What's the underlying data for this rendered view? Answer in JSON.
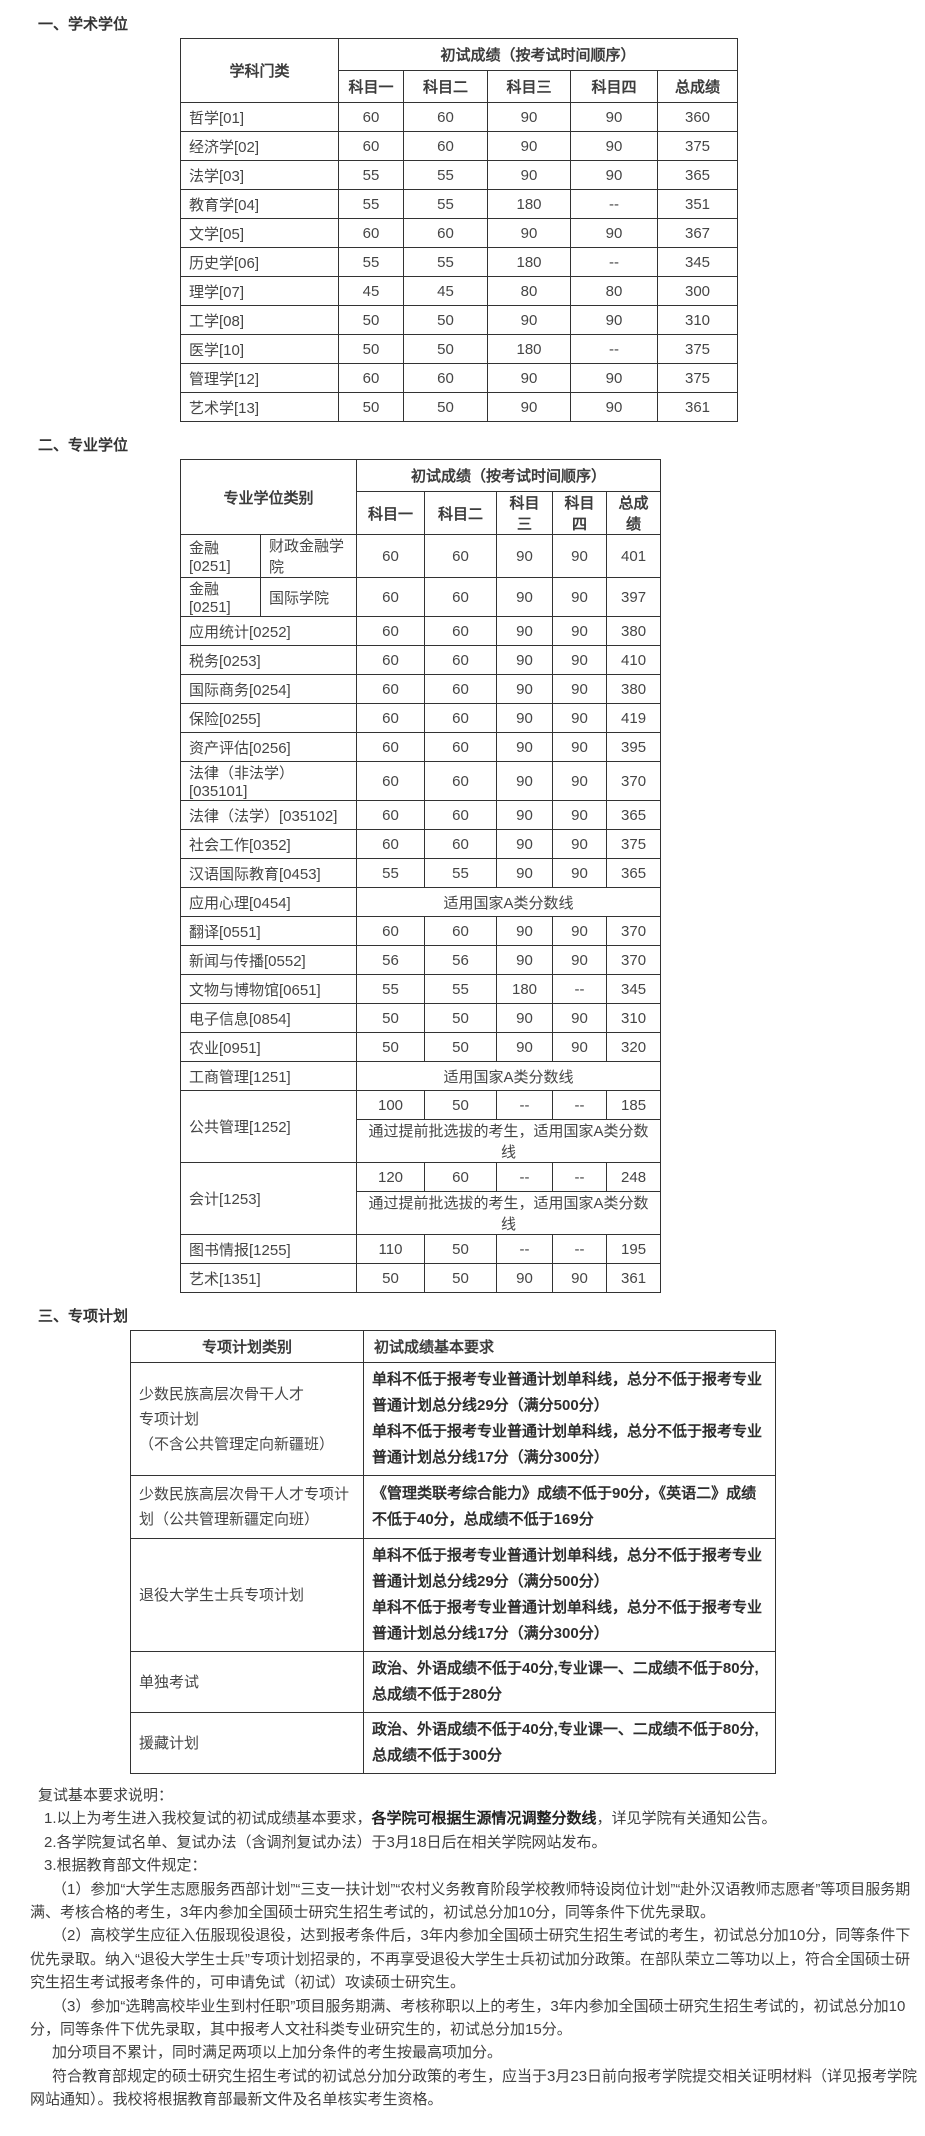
{
  "colors": {
    "border": "#333333",
    "text": "#404040",
    "heading": "#333333",
    "background": "#ffffff"
  },
  "academic": {
    "heading": "一、学术学位",
    "col_header": "学科门类",
    "score_group": "初试成绩（按考试时间顺序）",
    "subjects": [
      "科目一",
      "科目二",
      "科目三",
      "科目四",
      "总成绩"
    ],
    "rows": [
      {
        "name": "哲学[01]",
        "scores": [
          "60",
          "60",
          "90",
          "90",
          "360"
        ]
      },
      {
        "name": "经济学[02]",
        "scores": [
          "60",
          "60",
          "90",
          "90",
          "375"
        ]
      },
      {
        "name": "法学[03]",
        "scores": [
          "55",
          "55",
          "90",
          "90",
          "365"
        ]
      },
      {
        "name": "教育学[04]",
        "scores": [
          "55",
          "55",
          "180",
          "--",
          "351"
        ]
      },
      {
        "name": "文学[05]",
        "scores": [
          "60",
          "60",
          "90",
          "90",
          "367"
        ]
      },
      {
        "name": "历史学[06]",
        "scores": [
          "55",
          "55",
          "180",
          "--",
          "345"
        ]
      },
      {
        "name": "理学[07]",
        "scores": [
          "45",
          "45",
          "80",
          "80",
          "300"
        ]
      },
      {
        "name": "工学[08]",
        "scores": [
          "50",
          "50",
          "90",
          "90",
          "310"
        ]
      },
      {
        "name": "医学[10]",
        "scores": [
          "50",
          "50",
          "180",
          "--",
          "375"
        ]
      },
      {
        "name": "管理学[12]",
        "scores": [
          "60",
          "60",
          "90",
          "90",
          "375"
        ]
      },
      {
        "name": "艺术学[13]",
        "scores": [
          "50",
          "50",
          "90",
          "90",
          "361"
        ]
      }
    ]
  },
  "professional": {
    "heading": "二、专业学位",
    "col_header": "专业学位类别",
    "score_group": "初试成绩（按考试时间顺序）",
    "subjects": [
      "科目一",
      "科目二",
      "科目三",
      "科目四",
      "总成绩"
    ],
    "rows": [
      {
        "name": "金融[0251]",
        "college": "财政金融学院",
        "scores": [
          "60",
          "60",
          "90",
          "90",
          "401"
        ]
      },
      {
        "name": "金融[0251]",
        "college": "国际学院",
        "scores": [
          "60",
          "60",
          "90",
          "90",
          "397"
        ]
      },
      {
        "name": "应用统计[0252]",
        "scores": [
          "60",
          "60",
          "90",
          "90",
          "380"
        ]
      },
      {
        "name": "税务[0253]",
        "scores": [
          "60",
          "60",
          "90",
          "90",
          "410"
        ]
      },
      {
        "name": "国际商务[0254]",
        "scores": [
          "60",
          "60",
          "90",
          "90",
          "380"
        ]
      },
      {
        "name": "保险[0255]",
        "scores": [
          "60",
          "60",
          "90",
          "90",
          "419"
        ]
      },
      {
        "name": "资产评估[0256]",
        "scores": [
          "60",
          "60",
          "90",
          "90",
          "395"
        ]
      },
      {
        "name": "法律（非法学）[035101]",
        "scores": [
          "60",
          "60",
          "90",
          "90",
          "370"
        ]
      },
      {
        "name": "法律（法学）[035102]",
        "scores": [
          "60",
          "60",
          "90",
          "90",
          "365"
        ]
      },
      {
        "name": "社会工作[0352]",
        "scores": [
          "60",
          "60",
          "90",
          "90",
          "375"
        ]
      },
      {
        "name": "汉语国际教育[0453]",
        "scores": [
          "55",
          "55",
          "90",
          "90",
          "365"
        ]
      },
      {
        "name": "应用心理[0454]",
        "span_text": "适用国家A类分数线"
      },
      {
        "name": "翻译[0551]",
        "scores": [
          "60",
          "60",
          "90",
          "90",
          "370"
        ]
      },
      {
        "name": "新闻与传播[0552]",
        "scores": [
          "56",
          "56",
          "90",
          "90",
          "370"
        ]
      },
      {
        "name": "文物与博物馆[0651]",
        "scores": [
          "55",
          "55",
          "180",
          "--",
          "345"
        ]
      },
      {
        "name": "电子信息[0854]",
        "scores": [
          "50",
          "50",
          "90",
          "90",
          "310"
        ]
      },
      {
        "name": "农业[0951]",
        "scores": [
          "50",
          "50",
          "90",
          "90",
          "320"
        ]
      },
      {
        "name": "工商管理[1251]",
        "span_text": "适用国家A类分数线"
      },
      {
        "name": "公共管理[1252]",
        "sub_rows": [
          {
            "scores": [
              "100",
              "50",
              "--",
              "--",
              "185"
            ]
          },
          {
            "span_text": "通过提前批选拔的考生，适用国家A类分数线"
          }
        ]
      },
      {
        "name": "会计[1253]",
        "sub_rows": [
          {
            "scores": [
              "120",
              "60",
              "--",
              "--",
              "248"
            ]
          },
          {
            "span_text": "通过提前批选拔的考生，适用国家A类分数线"
          }
        ]
      },
      {
        "name": "图书情报[1255]",
        "scores": [
          "110",
          "50",
          "--",
          "--",
          "195"
        ]
      },
      {
        "name": "艺术[1351]",
        "scores": [
          "50",
          "50",
          "90",
          "90",
          "361"
        ]
      }
    ]
  },
  "special": {
    "heading": "三、专项计划",
    "col1": "专项计划类别",
    "col2": "初试成绩基本要求",
    "rows": [
      {
        "name": "少数民族高层次骨干人才\n专项计划\n（不含公共管理定向新疆班）",
        "req_lines": [
          "单科不低于报考专业普通计划单科线，总分不低于报考专业普通计划总分线29分（满分500分）",
          "单科不低于报考专业普通计划单科线，总分不低于报考专业普通计划总分线17分（满分300分）"
        ]
      },
      {
        "name": "少数民族高层次骨干人才专项计划（公共管理新疆定向班）",
        "req_lines": [
          "《管理类联考综合能力》成绩不低于90分，《英语二》成绩不低于40分，总成绩不低于169分"
        ]
      },
      {
        "name": "退役大学生士兵专项计划",
        "req_lines": [
          "单科不低于报考专业普通计划单科线，总分不低于报考专业普通计划总分线29分（满分500分）",
          "单科不低于报考专业普通计划单科线，总分不低于报考专业普通计划总分线17分（满分300分）"
        ]
      },
      {
        "name": "单独考试",
        "req_lines": [
          "政治、外语成绩不低于40分,专业课一、二成绩不低于80分,总成绩不低于280分"
        ]
      },
      {
        "name": "援藏计划",
        "req_lines": [
          "政治、外语成绩不低于40分,专业课一、二成绩不低于80分,总成绩不低于300分"
        ]
      }
    ]
  },
  "notes": {
    "title": "复试基本要求说明：",
    "items": [
      {
        "text_before": "1.以上为考生进入我校复试的初试成绩基本要求，",
        "bold": "各学院可根据生源情况调整分数线",
        "text_after": "，详见学院有关通知公告。"
      },
      {
        "text": "2.各学院复试名单、复试办法（含调剂复试办法）于3月18日后在相关学院网站发布。"
      },
      {
        "text": "3.根据教育部文件规定："
      },
      {
        "text": "（1）参加“大学生志愿服务西部计划”“三支一扶计划”“农村义务教育阶段学校教师特设岗位计划”“赴外汉语教师志愿者”等项目服务期满、考核合格的考生，3年内参加全国硕士研究生招生考试的，初试总分加10分，同等条件下优先录取。"
      },
      {
        "text": "（2）高校学生应征入伍服现役退役，达到报考条件后，3年内参加全国硕士研究生招生考试的考生，初试总分加10分，同等条件下优先录取。纳入“退役大学生士兵”专项计划招录的，不再享受退役大学生士兵初试加分政策。在部队荣立二等功以上，符合全国硕士研究生招生考试报考条件的，可申请免试（初试）攻读硕士研究生。"
      },
      {
        "text": "（3）参加“选聘高校毕业生到村任职”项目服务期满、考核称职以上的考生，3年内参加全国硕士研究生招生考试的，初试总分加10分，同等条件下优先录取，其中报考人文社科类专业研究生的，初试总分加15分。"
      },
      {
        "text": "加分项目不累计，同时满足两项以上加分条件的考生按最高项加分。"
      },
      {
        "text": "符合教育部规定的硕士研究生招生考试的初试总分加分政策的考生，应当于3月23日前向报考学院提交相关证明材料（详见报考学院网站通知）。我校将根据教育部最新文件及名单核实考生资格。"
      }
    ]
  }
}
